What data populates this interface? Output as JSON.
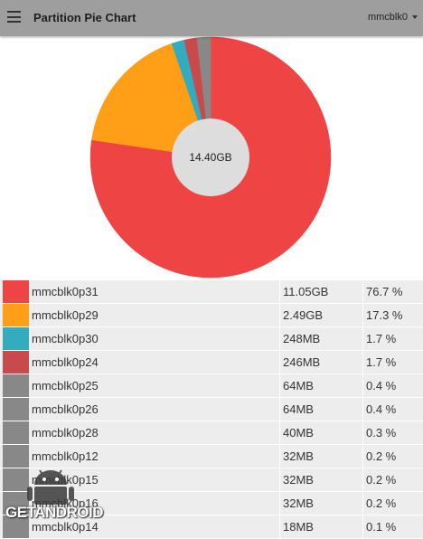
{
  "app_bar": {
    "title": "Partition Pie Chart",
    "device": "mmcblk0"
  },
  "icons": {
    "menu": "menu-icon",
    "dropdown": "caret-down-icon"
  },
  "colors": {
    "app_bar": "#9e9e9e",
    "red": "#ef4444",
    "orange": "#ff9f18",
    "teal": "#34acc0",
    "dark_red": "#c94a4a",
    "gray": "#888888",
    "center": "#dddddd",
    "row_bg": "#ededed"
  },
  "chart_data": {
    "type": "pie",
    "center_label": "14.40GB",
    "categories": [
      "mmcblk0p31",
      "mmcblk0p29",
      "mmcblk0p30",
      "mmcblk0p24",
      "mmcblk0p25",
      "mmcblk0p26",
      "mmcblk0p28",
      "mmcblk0p12",
      "mmcblk0p15",
      "mmcblk0p16",
      "mmcblk0p14"
    ],
    "values": [
      76.7,
      17.3,
      1.7,
      1.7,
      0.4,
      0.4,
      0.3,
      0.2,
      0.2,
      0.2,
      0.1
    ],
    "colors": [
      "#ef4444",
      "#ff9f18",
      "#34acc0",
      "#c94a4a",
      "#888888",
      "#888888",
      "#888888",
      "#888888",
      "#888888",
      "#888888",
      "#888888"
    ]
  },
  "partitions": [
    {
      "name": "mmcblk0p31",
      "size": "11.05GB",
      "percent": "76.7 %",
      "color": "#ef4444"
    },
    {
      "name": "mmcblk0p29",
      "size": "2.49GB",
      "percent": "17.3 %",
      "color": "#ff9f18"
    },
    {
      "name": "mmcblk0p30",
      "size": "248MB",
      "percent": "1.7 %",
      "color": "#34acc0"
    },
    {
      "name": "mmcblk0p24",
      "size": "246MB",
      "percent": "1.7 %",
      "color": "#c94a4a"
    },
    {
      "name": "mmcblk0p25",
      "size": "64MB",
      "percent": "0.4 %",
      "color": "#888888"
    },
    {
      "name": "mmcblk0p26",
      "size": "64MB",
      "percent": "0.4 %",
      "color": "#888888"
    },
    {
      "name": "mmcblk0p28",
      "size": "40MB",
      "percent": "0.3 %",
      "color": "#888888"
    },
    {
      "name": "mmcblk0p12",
      "size": "32MB",
      "percent": "0.2 %",
      "color": "#888888"
    },
    {
      "name": "mmcblk0p15",
      "size": "32MB",
      "percent": "0.2 %",
      "color": "#888888"
    },
    {
      "name": "mmcblk0p16",
      "size": "32MB",
      "percent": "0.2 %",
      "color": "#888888"
    },
    {
      "name": "mmcblk0p14",
      "size": "18MB",
      "percent": "0.1 %",
      "color": "#888888"
    }
  ],
  "watermark": {
    "text": "GETANDROID"
  }
}
